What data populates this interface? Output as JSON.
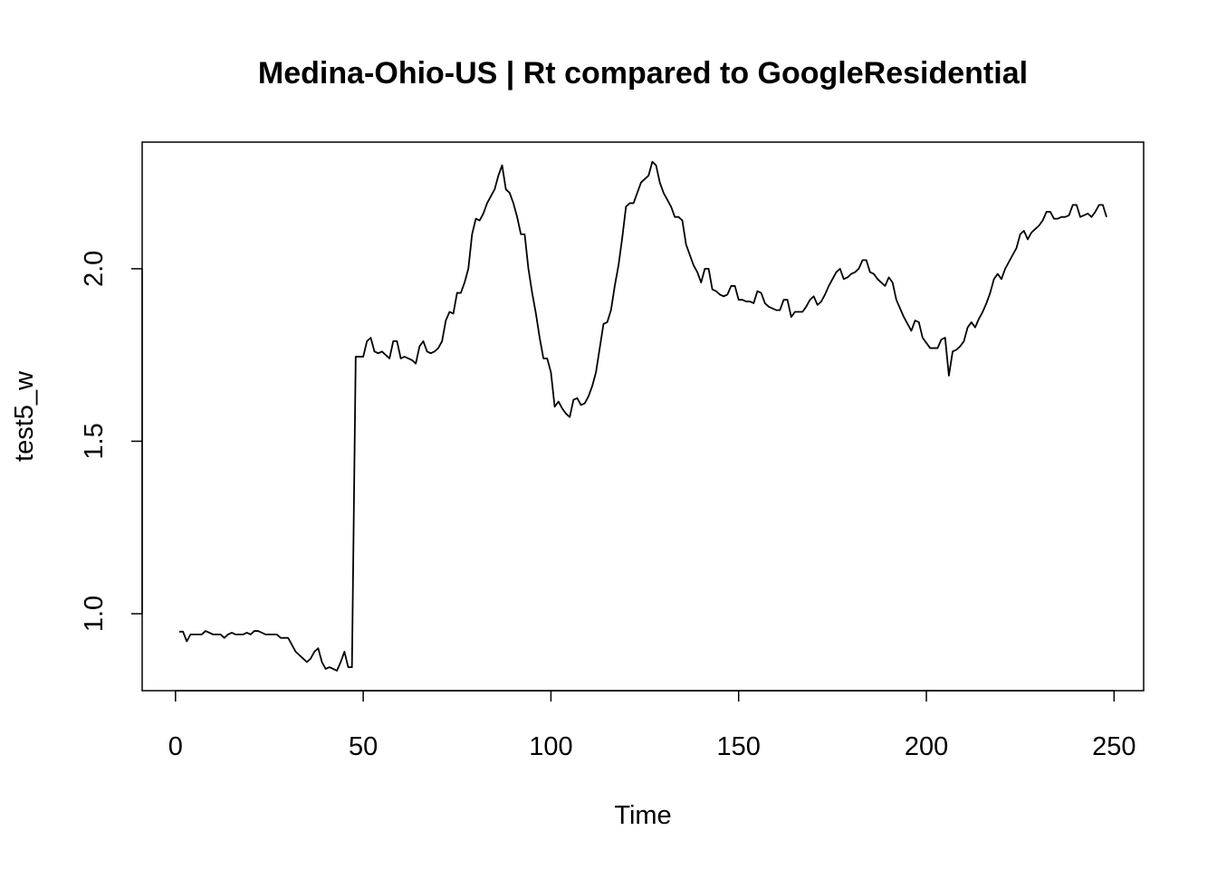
{
  "chart_data": {
    "type": "line",
    "title": "Medina-Ohio-US | Rt compared to GoogleResidential",
    "x_label": "Time",
    "y_label": "test5_w",
    "color": "#000000",
    "xlim": [
      -8.88,
      257.88
    ],
    "ylim": [
      0.777,
      2.367
    ],
    "xticks": [
      0,
      50,
      100,
      150,
      200,
      250
    ],
    "yticks": [
      {
        "value": 1.0,
        "label": "1.0"
      },
      {
        "value": 1.5,
        "label": "1.5"
      },
      {
        "value": 2.0,
        "label": "2.0"
      }
    ],
    "x": [
      1,
      2,
      3,
      4,
      5,
      6,
      7,
      8,
      9,
      10,
      11,
      12,
      13,
      14,
      15,
      16,
      17,
      18,
      19,
      20,
      21,
      22,
      23,
      24,
      25,
      26,
      27,
      28,
      29,
      30,
      31,
      32,
      33,
      34,
      35,
      36,
      37,
      38,
      39,
      40,
      41,
      42,
      43,
      44,
      45,
      46,
      47,
      48,
      49,
      50,
      51,
      52,
      53,
      54,
      55,
      56,
      57,
      58,
      59,
      60,
      61,
      62,
      63,
      64,
      65,
      66,
      67,
      68,
      69,
      70,
      71,
      72,
      73,
      74,
      75,
      76,
      77,
      78,
      79,
      80,
      81,
      82,
      83,
      84,
      85,
      86,
      87,
      88,
      89,
      90,
      91,
      92,
      93,
      94,
      95,
      96,
      97,
      98,
      99,
      100,
      101,
      102,
      103,
      104,
      105,
      106,
      107,
      108,
      109,
      110,
      111,
      112,
      113,
      114,
      115,
      116,
      117,
      118,
      119,
      120,
      121,
      122,
      123,
      124,
      125,
      126,
      127,
      128,
      129,
      130,
      131,
      132,
      133,
      134,
      135,
      136,
      137,
      138,
      139,
      140,
      141,
      142,
      143,
      144,
      145,
      146,
      147,
      148,
      149,
      150,
      151,
      152,
      153,
      154,
      155,
      156,
      157,
      158,
      159,
      160,
      161,
      162,
      163,
      164,
      165,
      166,
      167,
      168,
      169,
      170,
      171,
      172,
      173,
      174,
      175,
      176,
      177,
      178,
      179,
      180,
      181,
      182,
      183,
      184,
      185,
      186,
      187,
      188,
      189,
      190,
      191,
      192,
      193,
      194,
      195,
      196,
      197,
      198,
      199,
      200,
      201,
      202,
      203,
      204,
      205,
      206,
      207,
      208,
      209,
      210,
      211,
      212,
      213,
      214,
      215,
      216,
      217,
      218,
      219,
      220,
      221,
      222,
      223,
      224,
      225,
      226,
      227,
      228,
      229,
      230,
      231,
      232,
      233,
      234,
      235,
      236,
      237,
      238,
      239,
      240,
      241,
      242,
      243,
      244,
      245,
      246,
      247,
      248
    ],
    "values": [
      0.948,
      0.948,
      0.92,
      0.94,
      0.94,
      0.94,
      0.94,
      0.95,
      0.945,
      0.94,
      0.94,
      0.94,
      0.93,
      0.94,
      0.945,
      0.94,
      0.94,
      0.94,
      0.945,
      0.94,
      0.95,
      0.95,
      0.945,
      0.94,
      0.94,
      0.94,
      0.94,
      0.93,
      0.93,
      0.93,
      0.91,
      0.89,
      0.88,
      0.87,
      0.86,
      0.87,
      0.89,
      0.9,
      0.86,
      0.84,
      0.845,
      0.84,
      0.835,
      0.86,
      0.89,
      0.845,
      0.845,
      1.745,
      1.745,
      1.745,
      1.79,
      1.8,
      1.76,
      1.755,
      1.76,
      1.75,
      1.74,
      1.79,
      1.79,
      1.74,
      1.745,
      1.74,
      1.735,
      1.725,
      1.775,
      1.79,
      1.76,
      1.755,
      1.76,
      1.77,
      1.79,
      1.85,
      1.875,
      1.87,
      1.93,
      1.93,
      1.96,
      2.0,
      2.1,
      2.145,
      2.14,
      2.16,
      2.19,
      2.21,
      2.23,
      2.27,
      2.3,
      2.23,
      2.22,
      2.19,
      2.15,
      2.1,
      2.1,
      2.0,
      1.93,
      1.87,
      1.8,
      1.74,
      1.74,
      1.7,
      1.6,
      1.615,
      1.595,
      1.58,
      1.57,
      1.62,
      1.625,
      1.605,
      1.61,
      1.63,
      1.66,
      1.7,
      1.77,
      1.84,
      1.845,
      1.88,
      1.95,
      2.01,
      2.09,
      2.18,
      2.19,
      2.19,
      2.22,
      2.25,
      2.26,
      2.27,
      2.31,
      2.3,
      2.25,
      2.22,
      2.2,
      2.18,
      2.15,
      2.15,
      2.14,
      2.07,
      2.04,
      2.01,
      1.99,
      1.96,
      2.0,
      2.0,
      1.94,
      1.935,
      1.925,
      1.92,
      1.925,
      1.95,
      1.95,
      1.91,
      1.91,
      1.905,
      1.905,
      1.9,
      1.935,
      1.93,
      1.9,
      1.89,
      1.885,
      1.88,
      1.88,
      1.91,
      1.91,
      1.86,
      1.875,
      1.875,
      1.875,
      1.89,
      1.91,
      1.92,
      1.895,
      1.905,
      1.925,
      1.95,
      1.97,
      1.99,
      2.0,
      1.97,
      1.975,
      1.985,
      1.99,
      2.0,
      2.025,
      2.025,
      1.99,
      1.985,
      1.97,
      1.96,
      1.95,
      1.975,
      1.96,
      1.91,
      1.885,
      1.86,
      1.84,
      1.82,
      1.85,
      1.845,
      1.8,
      1.785,
      1.77,
      1.77,
      1.77,
      1.795,
      1.8,
      1.69,
      1.76,
      1.765,
      1.775,
      1.79,
      1.83,
      1.845,
      1.83,
      1.855,
      1.875,
      1.9,
      1.93,
      1.97,
      1.985,
      1.97,
      2.0,
      2.02,
      2.04,
      2.06,
      2.1,
      2.11,
      2.085,
      2.105,
      2.115,
      2.125,
      2.14,
      2.165,
      2.165,
      2.145,
      2.145,
      2.15,
      2.15,
      2.155,
      2.185,
      2.185,
      2.15,
      2.155,
      2.16,
      2.15,
      2.165,
      2.185,
      2.185,
      2.15
    ]
  }
}
